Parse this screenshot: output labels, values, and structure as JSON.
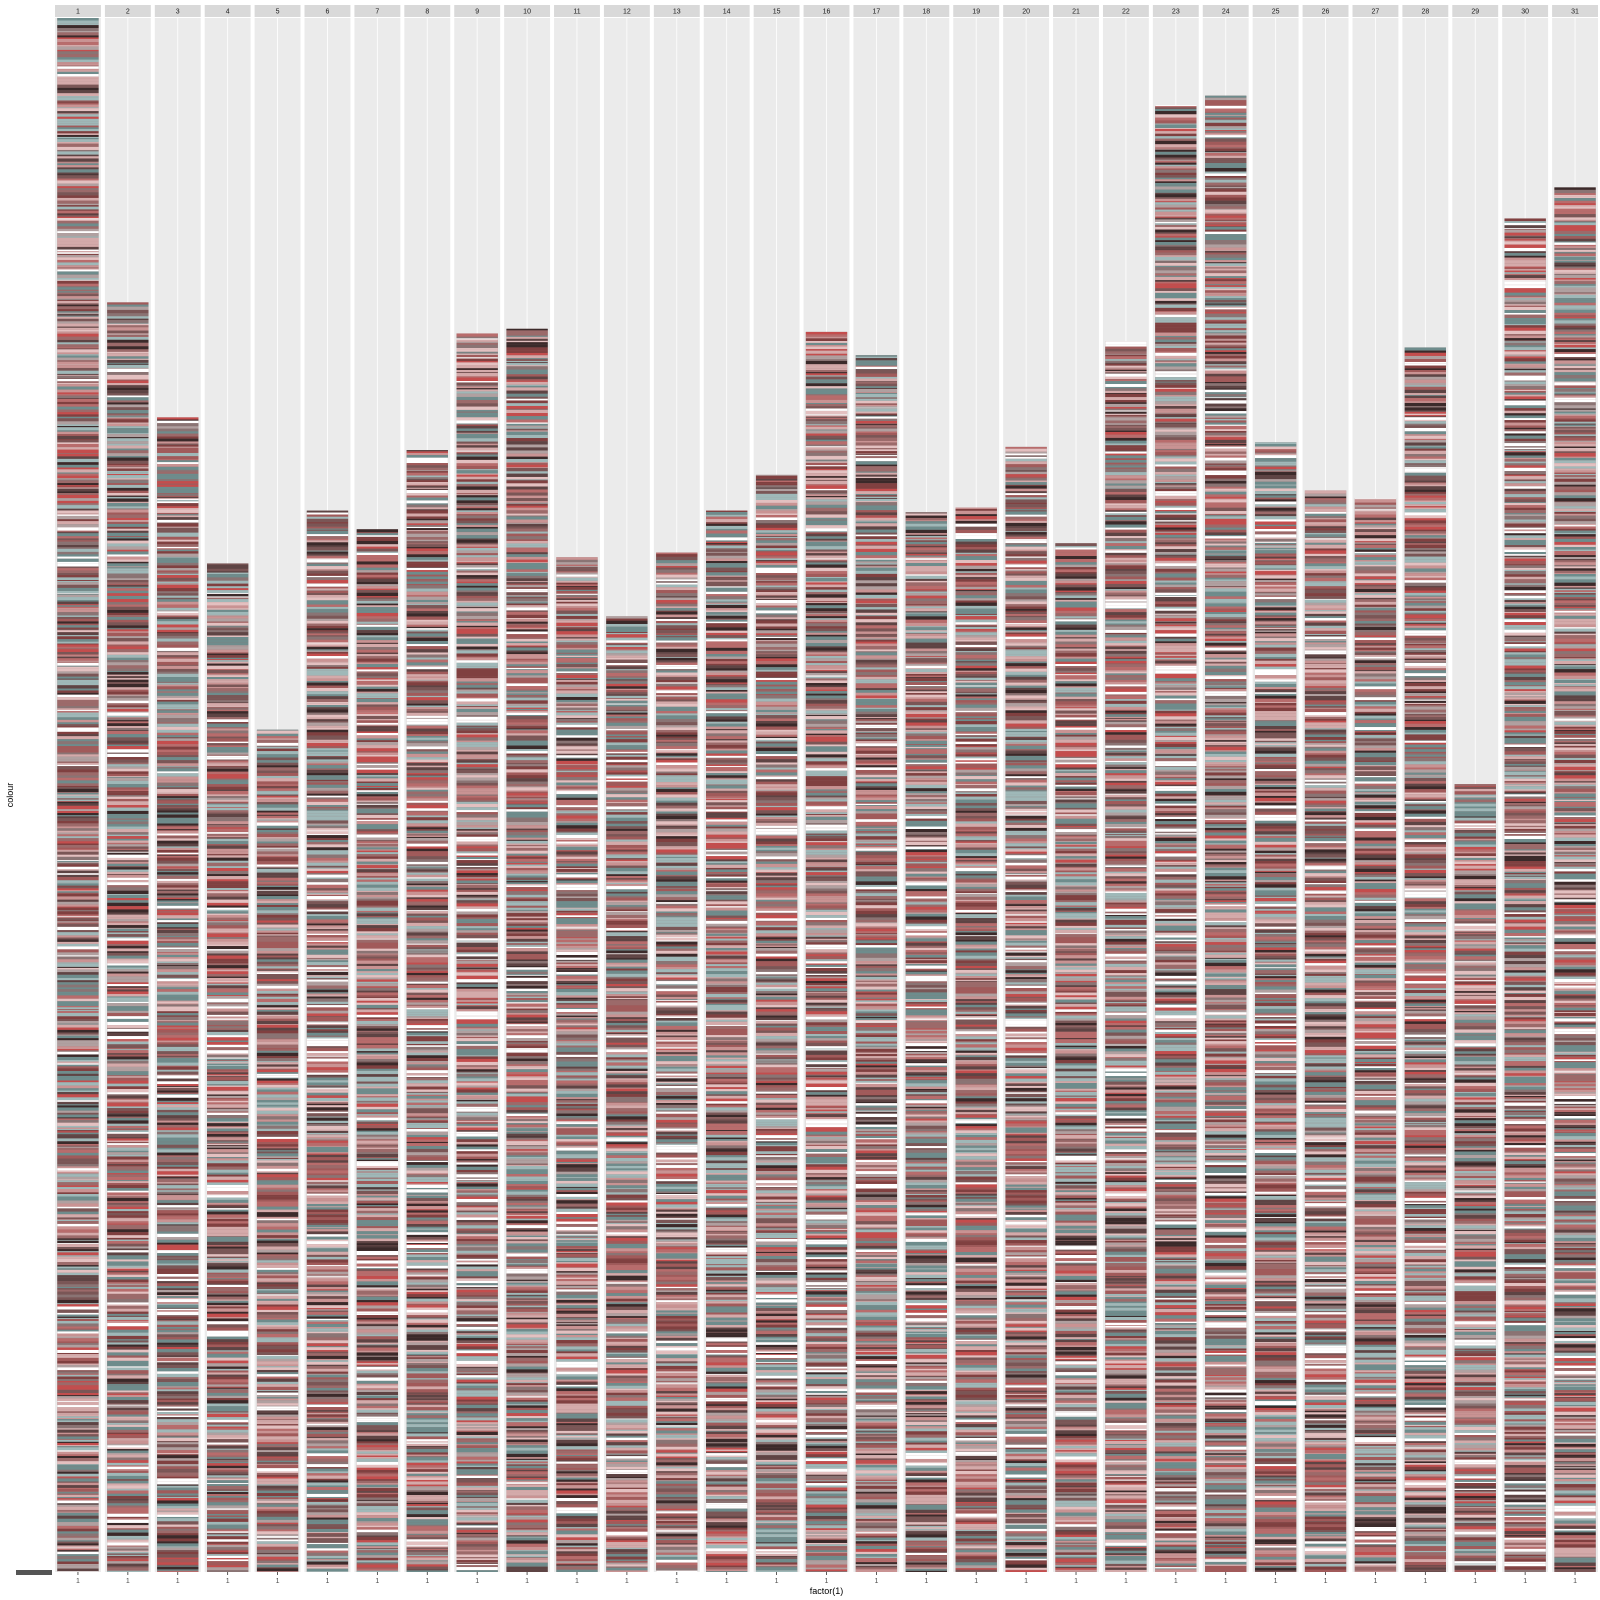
{
  "chart_data": {
    "type": "bar",
    "subtype": "faceted stacked bar (one bar per facet, each stacked from many thin colored segments)",
    "facets": [
      "1",
      "2",
      "3",
      "4",
      "5",
      "6",
      "7",
      "8",
      "9",
      "10",
      "11",
      "12",
      "13",
      "14",
      "15",
      "16",
      "17",
      "18",
      "19",
      "20",
      "21",
      "22",
      "23",
      "24",
      "25",
      "26",
      "27",
      "28",
      "29",
      "30",
      "31"
    ],
    "x_tick_label": "1",
    "values": [
      1000,
      817,
      743,
      649,
      542,
      683,
      671,
      722,
      797,
      800,
      653,
      615,
      656,
      683,
      706,
      798,
      783,
      682,
      685,
      724,
      662,
      792,
      944,
      950,
      727,
      696,
      691,
      788,
      507,
      871,
      891
    ],
    "xlabel": "factor(1)",
    "ylabel": "colour",
    "ylim": [
      0,
      1000
    ],
    "grid": true,
    "legend": "none",
    "colors": {
      "panel_background": "#ebebeb",
      "strip_background": "#d9d9d9",
      "segment_palette": [
        "#7a5656",
        "#9c6a6a",
        "#b86c6c",
        "#a15a5a",
        "#5e4444",
        "#3b2a2a",
        "#c99393",
        "#d4aaaa",
        "#8a7474",
        "#6e8c8c",
        "#9fb8b8",
        "#b0a0a0",
        "#804040",
        "#c44d4d",
        "#e3c0c0"
      ]
    }
  }
}
